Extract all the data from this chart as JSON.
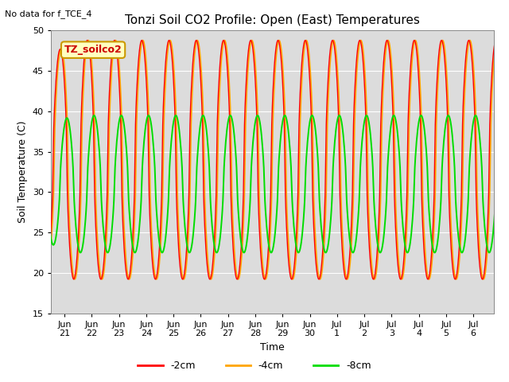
{
  "title": "Tonzi Soil CO2 Profile: Open (East) Temperatures",
  "ylabel": "Soil Temperature (C)",
  "xlabel": "Time",
  "no_data_text": "No data for f_TCE_4",
  "annotation_text": "TZ_soilco2",
  "ylim": [
    15,
    50
  ],
  "yticks": [
    15,
    20,
    25,
    30,
    35,
    40,
    45,
    50
  ],
  "bg_color": "#dcdcdc",
  "line_colors": {
    "m2cm": "#ff0000",
    "m4cm": "#ffa500",
    "m8cm": "#00dd00"
  },
  "legend_labels": [
    "-2cm",
    "-4cm",
    "-8cm"
  ],
  "figsize": [
    6.4,
    4.8
  ],
  "dpi": 100
}
